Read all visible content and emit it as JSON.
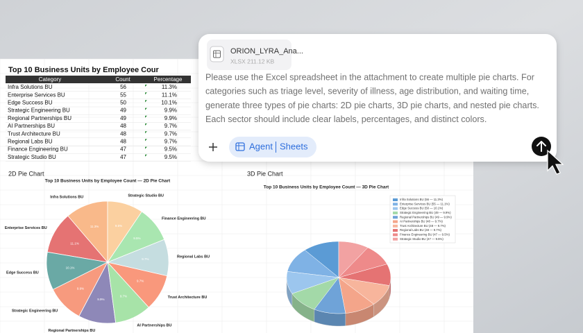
{
  "chat": {
    "attachment": {
      "name": "ORION_LYRA_Ana...",
      "meta": "XLSX 211.12 KB"
    },
    "prompt_lines": [
      "Please use the Excel spreadsheet in the attachment to create multiple pie charts. For",
      "categories such as triage level, severity of illness, age distribution, and waiting time,",
      "generate three types of pie charts: 2D pie charts, 3D pie charts, and nested pie charts.",
      "Each sector should include clear labels, percentages, and distinct colors."
    ],
    "agent_button": {
      "label": "Agent",
      "mode": "Sheets"
    }
  },
  "sheet": {
    "title": "Top 10 Business Units by Employee Cour",
    "table": {
      "header": [
        "Category",
        "Count",
        "Percentage"
      ],
      "rows": [
        [
          "Infra Solutions BU",
          56,
          "11.3%"
        ],
        [
          "Enterprise Services BU",
          55,
          "11.1%"
        ],
        [
          "Edge Success BU",
          50,
          "10.1%"
        ],
        [
          "Strategic Engineering BU",
          49,
          "9.9%"
        ],
        [
          "Regional Partnerships BU",
          49,
          "9.9%"
        ],
        [
          "AI Partnerships BU",
          48,
          "9.7%"
        ],
        [
          "Trust Architecture BU",
          48,
          "9.7%"
        ],
        [
          "Regional Labs BU",
          48,
          "9.7%"
        ],
        [
          "Finance Engineering BU",
          47,
          "9.5%"
        ],
        [
          "Strategic Studio BU",
          47,
          "9.5%"
        ]
      ]
    },
    "pie_2d": {
      "section_label": "2D Pie Chart",
      "title": "Top 10 Business Units by Employee Count — 2D Pie Chart",
      "colors": [
        "#f9b98a",
        "#e57373",
        "#6aa9a5",
        "#f79a7e",
        "#8e88b8",
        "#a7e3a8",
        "#f9987c",
        "#c5dde0",
        "#a9e6b0",
        "#fbd0a0"
      ]
    },
    "pie_3d": {
      "section_label": "3D Pie Chart",
      "title": "Top 10 Business Units by Employee Count — 3D Pie Chart",
      "colors": [
        "#5b9bd5",
        "#7fb2e5",
        "#9cc6ee",
        "#a3d9a8",
        "#6fa3d8",
        "#f4a58a",
        "#f7b59c",
        "#e57373",
        "#ee8a8a",
        "#f2a2a2"
      ],
      "legend": [
        "Infra Solutions BU (56 — 11.3%)",
        "Enterprise Services BU (55 — 11.1%)",
        "Edge Success BU (50 — 10.1%)",
        "Strategic Engineering BU (49 — 9.9%)",
        "Regional Partnerships BU (49 — 9.9%)",
        "AI Partnerships BU (48 — 9.7%)",
        "Trust Architecture BU (48 — 9.7%)",
        "Regional Labs BU (48 — 9.7%)",
        "Finance Engineering BU (47 — 9.5%)",
        "Strategic Studio BU (47 — 9.5%)"
      ]
    }
  }
}
